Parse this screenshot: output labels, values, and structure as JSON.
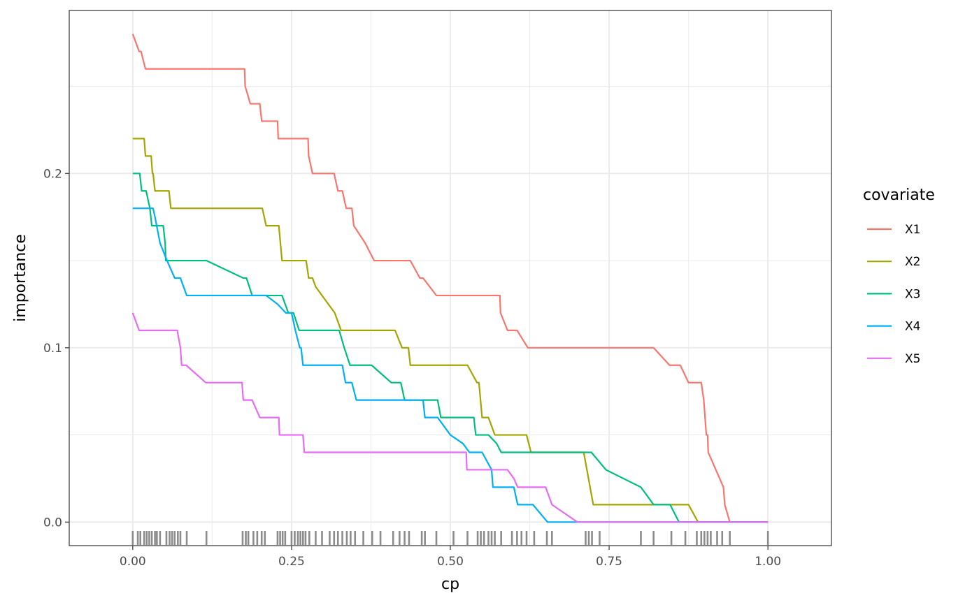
{
  "chart_data": {
    "type": "line",
    "xlabel": "cp",
    "ylabel": "importance",
    "xlim": [
      -0.1,
      1.1
    ],
    "ylim": [
      -0.0135,
      0.2935
    ],
    "x_ticks": [
      0.0,
      0.25,
      0.5,
      0.75,
      1.0
    ],
    "x_tick_labels": [
      "0.00",
      "0.25",
      "0.50",
      "0.75",
      "1.00"
    ],
    "y_ticks": [
      0.0,
      0.1,
      0.2
    ],
    "y_tick_labels": [
      "0.0",
      "0.1",
      "0.2"
    ],
    "grid": true,
    "legend_title": "covariate",
    "legend_position": "right",
    "series": [
      {
        "name": "X1",
        "color": "#F8766D",
        "x": [
          0,
          0.005,
          0.01,
          0.013,
          0.02,
          0.175,
          0.176,
          0.177,
          0.185,
          0.2,
          0.203,
          0.228,
          0.229,
          0.26,
          0.276,
          0.277,
          0.283,
          0.317,
          0.323,
          0.33,
          0.336,
          0.345,
          0.348,
          0.366,
          0.38,
          0.437,
          0.452,
          0.457,
          0.478,
          0.527,
          0.578,
          0.579,
          0.59,
          0.605,
          0.622,
          0.82,
          0.845,
          0.862,
          0.875,
          0.895,
          0.899,
          0.903,
          0.905,
          0.906,
          0.93,
          0.932,
          0.94,
          1.0
        ],
        "y": [
          0.28,
          0.275,
          0.27,
          0.27,
          0.26,
          0.26,
          0.26,
          0.25,
          0.24,
          0.24,
          0.23,
          0.23,
          0.22,
          0.22,
          0.22,
          0.21,
          0.2,
          0.2,
          0.19,
          0.19,
          0.18,
          0.18,
          0.17,
          0.16,
          0.15,
          0.15,
          0.14,
          0.14,
          0.13,
          0.13,
          0.13,
          0.12,
          0.11,
          0.11,
          0.1,
          0.1,
          0.09,
          0.09,
          0.08,
          0.08,
          0.07,
          0.05,
          0.05,
          0.04,
          0.02,
          0.01,
          0.0,
          0.0
        ]
      },
      {
        "name": "X2",
        "color": "#A3A500",
        "x": [
          0,
          0.018,
          0.02,
          0.029,
          0.031,
          0.032,
          0.035,
          0.057,
          0.06,
          0.204,
          0.21,
          0.23,
          0.235,
          0.273,
          0.277,
          0.283,
          0.288,
          0.318,
          0.328,
          0.413,
          0.424,
          0.434,
          0.437,
          0.527,
          0.542,
          0.545,
          0.55,
          0.56,
          0.57,
          0.62,
          0.627,
          0.71,
          0.715,
          0.72,
          0.725,
          0.875,
          0.89,
          1.0
        ],
        "y": [
          0.22,
          0.22,
          0.21,
          0.21,
          0.2,
          0.2,
          0.19,
          0.19,
          0.18,
          0.18,
          0.17,
          0.17,
          0.15,
          0.15,
          0.14,
          0.14,
          0.135,
          0.12,
          0.11,
          0.11,
          0.1,
          0.1,
          0.09,
          0.09,
          0.08,
          0.08,
          0.06,
          0.06,
          0.05,
          0.05,
          0.04,
          0.04,
          0.03,
          0.02,
          0.01,
          0.01,
          0.0,
          0.0
        ]
      },
      {
        "name": "X3",
        "color": "#00BF7D",
        "x": [
          0,
          0.011,
          0.014,
          0.021,
          0.027,
          0.03,
          0.037,
          0.048,
          0.051,
          0.052,
          0.116,
          0.174,
          0.179,
          0.188,
          0.224,
          0.235,
          0.245,
          0.253,
          0.262,
          0.316,
          0.325,
          0.333,
          0.342,
          0.353,
          0.376,
          0.407,
          0.418,
          0.422,
          0.428,
          0.48,
          0.485,
          0.537,
          0.54,
          0.56,
          0.573,
          0.58,
          0.722,
          0.745,
          0.8,
          0.82,
          0.846,
          0.86,
          1.0
        ],
        "y": [
          0.2,
          0.2,
          0.19,
          0.19,
          0.18,
          0.17,
          0.17,
          0.17,
          0.16,
          0.15,
          0.15,
          0.14,
          0.14,
          0.13,
          0.13,
          0.13,
          0.12,
          0.12,
          0.11,
          0.11,
          0.11,
          0.1,
          0.09,
          0.09,
          0.09,
          0.08,
          0.08,
          0.08,
          0.07,
          0.07,
          0.06,
          0.06,
          0.05,
          0.05,
          0.045,
          0.04,
          0.04,
          0.03,
          0.02,
          0.01,
          0.01,
          0.0,
          0.0
        ]
      },
      {
        "name": "X4",
        "color": "#00B0F6",
        "x": [
          0,
          0.032,
          0.035,
          0.043,
          0.054,
          0.066,
          0.075,
          0.085,
          0.21,
          0.228,
          0.241,
          0.245,
          0.25,
          0.256,
          0.263,
          0.265,
          0.268,
          0.283,
          0.33,
          0.335,
          0.345,
          0.352,
          0.455,
          0.457,
          0.46,
          0.48,
          0.5,
          0.52,
          0.53,
          0.55,
          0.565,
          0.567,
          0.575,
          0.6,
          0.606,
          0.63,
          0.653,
          0.67,
          0.7,
          1.0
        ],
        "y": [
          0.18,
          0.18,
          0.175,
          0.16,
          0.15,
          0.14,
          0.14,
          0.13,
          0.13,
          0.125,
          0.12,
          0.12,
          0.12,
          0.11,
          0.1,
          0.1,
          0.09,
          0.09,
          0.09,
          0.08,
          0.08,
          0.07,
          0.07,
          0.07,
          0.06,
          0.06,
          0.05,
          0.045,
          0.04,
          0.04,
          0.03,
          0.02,
          0.02,
          0.02,
          0.01,
          0.01,
          0.0,
          0.0,
          0.0,
          0.0
        ]
      },
      {
        "name": "X5",
        "color": "#E76BF3",
        "x": [
          0,
          0.01,
          0.07,
          0.075,
          0.077,
          0.084,
          0.115,
          0.172,
          0.174,
          0.188,
          0.2,
          0.23,
          0.231,
          0.268,
          0.27,
          0.525,
          0.526,
          0.59,
          0.6,
          0.606,
          0.65,
          0.66,
          0.7,
          1.0
        ],
        "y": [
          0.12,
          0.11,
          0.11,
          0.1,
          0.09,
          0.09,
          0.08,
          0.08,
          0.07,
          0.07,
          0.06,
          0.06,
          0.05,
          0.05,
          0.04,
          0.04,
          0.03,
          0.03,
          0.025,
          0.02,
          0.02,
          0.01,
          0.0,
          0.0
        ]
      }
    ],
    "rug_x": [
      0.0,
      0.008,
      0.012,
      0.018,
      0.022,
      0.026,
      0.03,
      0.035,
      0.038,
      0.043,
      0.053,
      0.058,
      0.062,
      0.066,
      0.071,
      0.075,
      0.085,
      0.116,
      0.173,
      0.178,
      0.182,
      0.19,
      0.196,
      0.203,
      0.208,
      0.228,
      0.232,
      0.236,
      0.24,
      0.25,
      0.255,
      0.26,
      0.264,
      0.268,
      0.272,
      0.278,
      0.288,
      0.298,
      0.31,
      0.317,
      0.323,
      0.33,
      0.337,
      0.343,
      0.35,
      0.363,
      0.377,
      0.39,
      0.41,
      0.42,
      0.428,
      0.435,
      0.455,
      0.46,
      0.478,
      0.505,
      0.527,
      0.543,
      0.548,
      0.553,
      0.56,
      0.565,
      0.57,
      0.58,
      0.597,
      0.605,
      0.612,
      0.62,
      0.632,
      0.652,
      0.66,
      0.713,
      0.718,
      0.723,
      0.735,
      0.8,
      0.82,
      0.848,
      0.87,
      0.888,
      0.895,
      0.9,
      0.905,
      0.91,
      0.92,
      0.928,
      0.94,
      1.0
    ]
  }
}
